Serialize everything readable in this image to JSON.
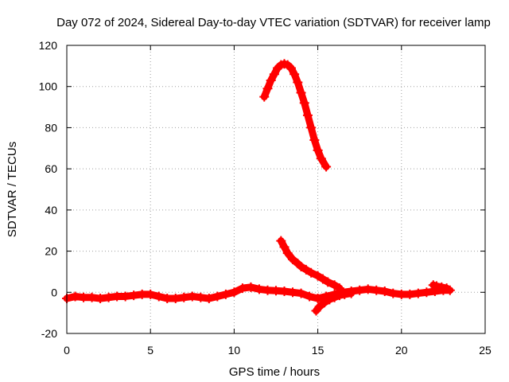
{
  "chart_data": {
    "type": "line",
    "title": "Day 072 of 2024, Sidereal Day-to-day VTEC variation (SDTVAR) for receiver lamp",
    "xlabel": "GPS time / hours",
    "ylabel": "SDTVAR / TECUs",
    "xlim": [
      0,
      25
    ],
    "ylim": [
      -20,
      120
    ],
    "xticks": [
      0,
      5,
      10,
      15,
      20,
      25
    ],
    "xtick_labels": [
      "0",
      "5",
      "10",
      "15",
      "20",
      "25"
    ],
    "yticks": [
      -20,
      0,
      20,
      40,
      60,
      80,
      100,
      120
    ],
    "ytick_labels": [
      "-20",
      "0",
      "20",
      "40",
      "60",
      "80",
      "100",
      "120"
    ],
    "grid": true,
    "marker": "+",
    "color": "#ff0000",
    "series": [
      {
        "x": [
          0.0,
          0.5,
          1.0,
          1.5,
          2.0,
          2.5,
          3.0,
          3.5,
          4.0,
          4.5,
          5.0,
          5.5,
          6.0,
          6.5,
          7.0,
          7.5,
          8.0,
          8.5,
          9.0,
          9.5,
          10.0,
          10.5,
          11.0,
          11.5,
          12.0,
          12.5,
          13.0,
          13.5,
          14.0,
          14.5,
          15.0,
          15.5,
          16.0,
          16.5,
          17.0,
          17.5,
          18.0,
          18.5,
          19.0,
          19.5,
          20.0,
          20.5,
          21.0,
          21.5,
          22.0,
          22.5,
          22.9
        ],
        "y": [
          -3.0,
          -2.0,
          -2.5,
          -2.5,
          -3.0,
          -2.5,
          -2.0,
          -2.0,
          -1.5,
          -1.0,
          -1.0,
          -2.0,
          -3.0,
          -3.0,
          -2.5,
          -2.0,
          -2.5,
          -3.0,
          -2.0,
          -1.0,
          0.0,
          2.0,
          2.5,
          1.5,
          1.0,
          0.8,
          0.5,
          0.0,
          -0.5,
          -2.0,
          -3.0,
          -2.0,
          -1.0,
          0.0,
          0.5,
          1.0,
          1.5,
          1.0,
          0.5,
          -0.5,
          -1.0,
          -1.0,
          -0.5,
          0.0,
          0.5,
          1.0,
          1.0
        ]
      },
      {
        "x": [
          11.8,
          12.0,
          12.2,
          12.4,
          12.6,
          12.8,
          13.0,
          13.2,
          13.4,
          13.6,
          13.8,
          14.0,
          14.2,
          14.4,
          14.6,
          14.8,
          15.0,
          15.2,
          15.5
        ],
        "y": [
          95,
          99,
          103,
          106,
          109,
          110.5,
          111,
          110.5,
          109,
          106,
          102,
          97,
          92,
          86,
          80,
          74,
          69,
          65,
          61
        ]
      },
      {
        "x": [
          12.8,
          13.0,
          13.2,
          13.5,
          13.8,
          14.0,
          14.3,
          14.6,
          15.0,
          15.3,
          15.6,
          16.0,
          16.3
        ],
        "y": [
          25,
          22,
          19,
          16,
          14,
          12.5,
          11,
          9.5,
          8,
          6.5,
          5,
          3.5,
          2
        ]
      },
      {
        "x": [
          14.9,
          15.1,
          15.4,
          15.7,
          16.0,
          16.3,
          16.6,
          17.0
        ],
        "y": [
          -9,
          -7,
          -5,
          -3.5,
          -2.5,
          -1.5,
          -1.0,
          -0.5
        ]
      },
      {
        "x": [
          21.9,
          22.1,
          22.4,
          22.7
        ],
        "y": [
          3.5,
          3.0,
          2.5,
          2.0
        ]
      }
    ]
  }
}
